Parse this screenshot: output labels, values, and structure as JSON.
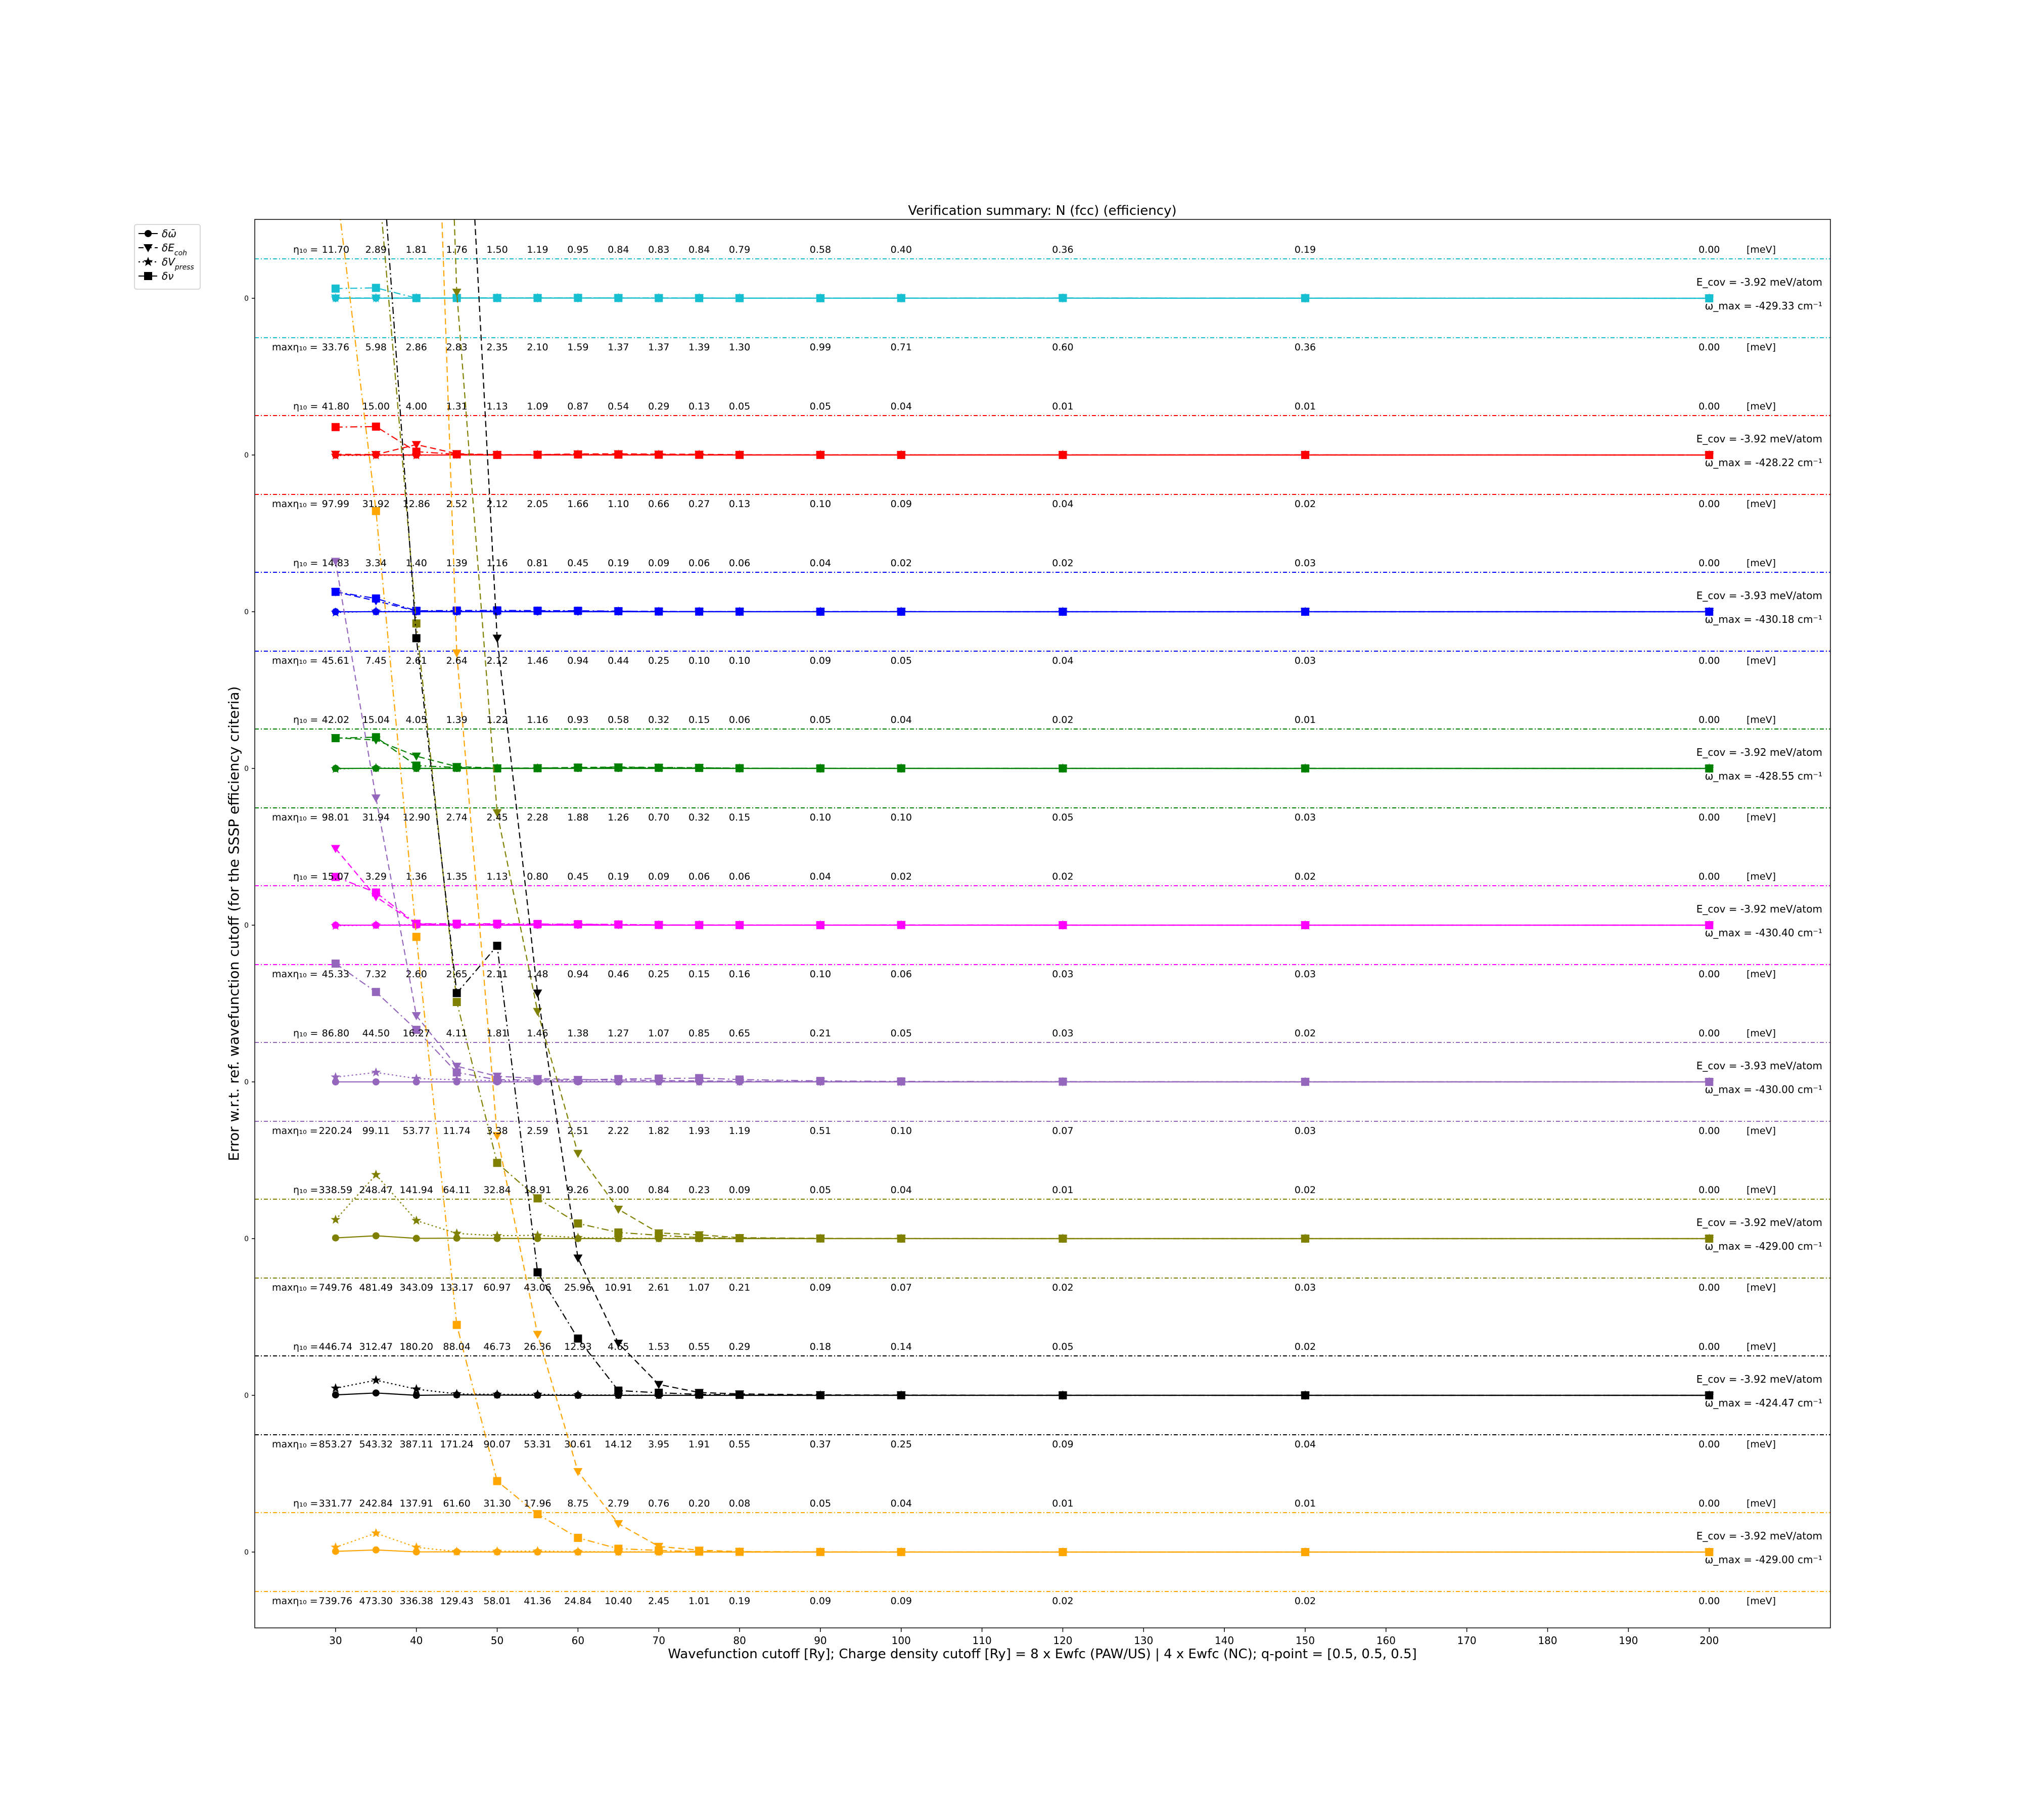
{
  "chart_data": {
    "type": "line",
    "title": "Verification summary: N (fcc) (efficiency)",
    "xlabel": "Wavefunction cutoff [Ry]; Charge density cutoff [Ry] = 8 x Ewfc (PAW/US) | 4 x Ewfc (NC); q-point = [0.5, 0.5, 0.5]",
    "ylabel": "Error w.r.t. ref. wavefunction cutoff (for the SSSP efficiency criteria)",
    "x": [
      30,
      35,
      40,
      45,
      50,
      55,
      60,
      65,
      70,
      75,
      80,
      90,
      100,
      120,
      150,
      200
    ],
    "xticks": [
      30,
      40,
      50,
      60,
      70,
      80,
      90,
      100,
      110,
      120,
      130,
      140,
      150,
      160,
      170,
      180,
      190,
      200
    ],
    "xlim": [
      20,
      215
    ],
    "legend": {
      "placement": "top-left, outside",
      "entries": [
        {
          "label": "δω̄",
          "linestyle": "solid",
          "marker": "circle"
        },
        {
          "label": "δE_coh",
          "linestyle": "dashed",
          "marker": "triangle-down"
        },
        {
          "label": "δV_press",
          "linestyle": "dotted",
          "marker": "star"
        },
        {
          "label": "δν",
          "linestyle": "dashdot",
          "marker": "square"
        }
      ]
    },
    "row_ytick": "0",
    "unit_label": "[meV]",
    "eta_prefix": "η₁₀ =",
    "max_eta_prefix": "maxη₁₀ =",
    "rows": [
      {
        "color": "#17becf",
        "eta": [
          "11.70",
          "2.89",
          "1.81",
          "1.76",
          "1.50",
          "1.19",
          "0.95",
          "0.84",
          "0.83",
          "0.84",
          "0.79",
          "0.58",
          "0.40",
          "0.36",
          "0.19",
          "0.00"
        ],
        "max_eta": [
          "33.76",
          "5.98",
          "2.86",
          "2.83",
          "2.35",
          "2.10",
          "1.59",
          "1.37",
          "1.37",
          "1.39",
          "1.30",
          "0.99",
          "0.71",
          "0.60",
          "0.36",
          "0.00"
        ],
        "ecov": "E_cov = -3.92 meV/atom",
        "omega": "ω_max = -429.33 cm⁻¹",
        "omega_bar": [
          0,
          0.02,
          0.02,
          0.03,
          0.03,
          0.03,
          0.03,
          0.03,
          0.03,
          0.03,
          0.02,
          0.02,
          0.02,
          0.02,
          0.01,
          0
        ],
        "ecoh": [
          0.05,
          0.06,
          0.05,
          0.06,
          0.06,
          0.06,
          0.06,
          0.06,
          0.05,
          0.05,
          0.04,
          0.04,
          0.04,
          0.03,
          0.02,
          0
        ],
        "vpress": [
          0.03,
          0.04,
          0.04,
          0.05,
          0.06,
          0.06,
          0.07,
          0.06,
          0.06,
          0.05,
          0.04,
          0.03,
          0.03,
          0.03,
          0.02,
          0
        ],
        "nu": [
          2.05,
          2.2,
          0.04,
          0.06,
          0.06,
          0.06,
          0.08,
          0.06,
          0.05,
          0.04,
          0.03,
          0.02,
          0.04,
          0.06,
          0.03,
          0
        ]
      },
      {
        "color": "#ff0000",
        "eta": [
          "41.80",
          "15.00",
          "4.00",
          "1.31",
          "1.13",
          "1.09",
          "0.87",
          "0.54",
          "0.29",
          "0.13",
          "0.05",
          "0.05",
          "0.04",
          "0.01",
          "0.01",
          "0.00"
        ],
        "max_eta": [
          "97.99",
          "31.92",
          "12.86",
          "2.52",
          "2.12",
          "2.05",
          "1.66",
          "1.10",
          "0.66",
          "0.27",
          "0.13",
          "0.10",
          "0.09",
          "0.04",
          "0.02",
          "0.00"
        ],
        "ecov": "E_cov = -3.92 meV/atom",
        "omega": "ω_max = -428.22 cm⁻¹",
        "omega_bar": [
          0,
          0.02,
          0,
          0,
          0,
          0,
          0,
          0,
          0,
          0,
          0,
          0,
          0,
          0,
          0,
          0
        ],
        "ecoh": [
          0.15,
          0.1,
          2.2,
          0.28,
          0.05,
          0.07,
          0.22,
          0.25,
          0.18,
          0.15,
          0.05,
          0.03,
          0.02,
          0.01,
          0.01,
          0
        ],
        "vpress": [
          -0.1,
          -0.05,
          -0.05,
          0.03,
          0.02,
          0.04,
          0.1,
          0.1,
          0.07,
          0.06,
          0.02,
          0.02,
          0.01,
          0.01,
          0,
          0
        ],
        "nu": [
          5.9,
          6.0,
          0.7,
          0.15,
          0.02,
          0.05,
          0.12,
          0.08,
          0.06,
          0.04,
          0.02,
          0.02,
          0.01,
          0.01,
          0.01,
          0
        ]
      },
      {
        "color": "#0000ff",
        "eta": [
          "14.83",
          "3.34",
          "1.40",
          "1.39",
          "1.16",
          "0.81",
          "0.45",
          "0.19",
          "0.09",
          "0.06",
          "0.06",
          "0.04",
          "0.02",
          "0.02",
          "0.03",
          "0.00"
        ],
        "max_eta": [
          "45.61",
          "7.45",
          "2.61",
          "2.64",
          "2.12",
          "1.46",
          "0.94",
          "0.44",
          "0.25",
          "0.10",
          "0.10",
          "0.09",
          "0.05",
          "0.04",
          "0.03",
          "0.00"
        ],
        "ecov": "E_cov = -3.93 meV/atom",
        "omega": "ω_max = -430.18 cm⁻¹",
        "omega_bar": [
          0,
          0,
          0,
          0,
          0,
          0,
          0,
          0,
          0,
          0,
          0,
          0,
          0,
          0,
          0,
          0
        ],
        "ecoh": [
          4.2,
          2.3,
          0.12,
          0.05,
          0.1,
          0.1,
          0.1,
          0.1,
          0.06,
          0.03,
          0.02,
          0.01,
          0.01,
          0,
          0,
          0
        ],
        "vpress": [
          -0.15,
          0.08,
          0.05,
          0.03,
          0.05,
          0.08,
          0.08,
          0.06,
          0.03,
          0.02,
          0.02,
          0.01,
          0.01,
          0,
          0,
          0
        ],
        "nu": [
          4.2,
          2.8,
          0.2,
          0.25,
          0.28,
          0.22,
          0.2,
          0.12,
          0.05,
          0.03,
          0.02,
          0.01,
          0.01,
          0,
          0,
          0
        ]
      },
      {
        "color": "#008000",
        "eta": [
          "42.02",
          "15.04",
          "4.05",
          "1.39",
          "1.22",
          "1.16",
          "0.93",
          "0.58",
          "0.32",
          "0.15",
          "0.06",
          "0.05",
          "0.04",
          "0.02",
          "0.01",
          "0.00"
        ],
        "max_eta": [
          "98.01",
          "31.94",
          "12.90",
          "2.74",
          "2.45",
          "2.28",
          "1.88",
          "1.26",
          "0.70",
          "0.32",
          "0.15",
          "0.10",
          "0.10",
          "0.05",
          "0.03",
          "0.00"
        ],
        "ecov": "E_cov = -3.92 meV/atom",
        "omega": "ω_max = -428.55 cm⁻¹",
        "omega_bar": [
          0,
          0.02,
          0,
          0,
          0,
          0,
          0,
          0,
          0,
          0,
          0,
          0,
          0,
          0,
          0,
          0
        ],
        "ecoh": [
          6.5,
          6.0,
          2.6,
          0.4,
          0.05,
          0.1,
          0.2,
          0.3,
          0.2,
          0.15,
          0.03,
          0.02,
          0.02,
          0.01,
          0,
          0
        ],
        "vpress": [
          -0.1,
          0.1,
          0.04,
          0.02,
          0.02,
          0.04,
          0.06,
          0.05,
          0.05,
          0.04,
          0.02,
          0.01,
          0.01,
          0,
          0,
          0
        ],
        "nu": [
          6.4,
          6.6,
          0.6,
          0.2,
          0.02,
          0.05,
          0.18,
          0.2,
          0.15,
          0.12,
          0.05,
          0.02,
          0.02,
          0.01,
          0.01,
          0
        ]
      },
      {
        "color": "#ff00ff",
        "eta": [
          "15.07",
          "3.29",
          "1.36",
          "1.35",
          "1.13",
          "0.80",
          "0.45",
          "0.19",
          "0.09",
          "0.06",
          "0.06",
          "0.04",
          "0.02",
          "0.02",
          "0.02",
          "0.00"
        ],
        "max_eta": [
          "45.33",
          "7.32",
          "2.60",
          "2.65",
          "2.11",
          "1.48",
          "0.94",
          "0.46",
          "0.25",
          "0.15",
          "0.16",
          "0.10",
          "0.06",
          "0.03",
          "0.03",
          "0.00"
        ],
        "ecov": "E_cov = -3.92 meV/atom",
        "omega": "ω_max = -430.40 cm⁻¹",
        "omega_bar": [
          0,
          0,
          0,
          0,
          0,
          0,
          0,
          0,
          0,
          0,
          0,
          0,
          0,
          0,
          0,
          0
        ],
        "ecoh": [
          16.2,
          6.0,
          0.25,
          0.2,
          0.15,
          0.15,
          0.15,
          0.1,
          0.05,
          0.03,
          0.02,
          0.01,
          0.01,
          0,
          0,
          0
        ],
        "vpress": [
          -0.12,
          0,
          0.12,
          0.05,
          0.05,
          0.08,
          0.1,
          0.06,
          0.03,
          0.02,
          0.01,
          0.01,
          0.01,
          0,
          0,
          0
        ],
        "nu": [
          10.2,
          6.9,
          0.3,
          0.3,
          0.3,
          0.25,
          0.2,
          0.15,
          0.05,
          0.03,
          0.02,
          0.01,
          0.04,
          0.01,
          0,
          0
        ]
      },
      {
        "color": "#9467bd",
        "eta": [
          "86.80",
          "44.50",
          "16.27",
          "4.11",
          "1.81",
          "1.46",
          "1.38",
          "1.27",
          "1.07",
          "0.85",
          "0.65",
          "0.21",
          "0.05",
          "0.03",
          "0.02",
          "0.00"
        ],
        "max_eta": [
          "220.24",
          "99.11",
          "53.77",
          "11.74",
          "3.38",
          "2.59",
          "2.51",
          "2.22",
          "1.82",
          "1.93",
          "1.19",
          "0.51",
          "0.10",
          "0.07",
          "0.03",
          "0.00"
        ],
        "ecov": "E_cov = -3.93 meV/atom",
        "omega": "ω_max = -430.00 cm⁻¹",
        "omega_bar": [
          0,
          0,
          0,
          0,
          0,
          0,
          0,
          0,
          0,
          0,
          0,
          0,
          0,
          0,
          0,
          0
        ],
        "ecoh": [
          110,
          60,
          14,
          3.3,
          1.2,
          0.7,
          0.5,
          0.4,
          0.3,
          0.2,
          0.15,
          0.05,
          0.02,
          0.01,
          0,
          0
        ],
        "vpress": [
          1.0,
          2.0,
          0.7,
          0.45,
          0.25,
          0.2,
          0.15,
          0.1,
          0.05,
          0.04,
          0.03,
          0.02,
          0.01,
          0,
          0,
          0
        ],
        "nu": [
          25,
          19,
          11,
          2.0,
          0.45,
          0.4,
          0.4,
          0.6,
          0.7,
          0.8,
          0.5,
          0.2,
          0.1,
          0.05,
          0.02,
          0
        ]
      },
      {
        "color": "#808000",
        "eta": [
          "338.59",
          "248.47",
          "141.94",
          "64.11",
          "32.84",
          "18.91",
          "9.26",
          "3.00",
          "0.84",
          "0.23",
          "0.09",
          "0.05",
          "0.04",
          "0.01",
          "0.02",
          "0.00"
        ],
        "max_eta": [
          "749.76",
          "481.49",
          "343.09",
          "133.17",
          "60.97",
          "43.06",
          "25.96",
          "10.91",
          "2.61",
          "1.07",
          "0.21",
          "0.09",
          "0.07",
          "0.02",
          "0.03",
          "0.00"
        ],
        "ecov": "E_cov = -3.92 meV/atom",
        "omega": "ω_max = -429.00 cm⁻¹",
        "omega_bar": [
          0.15,
          0.6,
          0.05,
          0.1,
          0.03,
          0.02,
          0.01,
          0,
          0,
          0,
          0,
          0,
          0,
          0,
          0,
          0
        ],
        "ecoh": [
          1100,
          800,
          450,
          200,
          90,
          48,
          18,
          6.2,
          1.2,
          0.8,
          0.2,
          0.05,
          0.02,
          0,
          0,
          0
        ],
        "vpress": [
          4.0,
          13.5,
          3.8,
          1.1,
          0.6,
          0.7,
          0.2,
          0.1,
          0.05,
          0.03,
          0.02,
          0.01,
          0,
          0,
          0,
          0
        ],
        "nu": [
          300,
          230,
          130,
          50,
          16,
          8.5,
          3.2,
          1.3,
          0.7,
          0.2,
          0.1,
          0.03,
          0.01,
          0,
          0,
          0
        ]
      },
      {
        "color": "#000000",
        "eta": [
          "446.74",
          "312.47",
          "180.20",
          "88.04",
          "46.73",
          "26.36",
          "12.93",
          "4.65",
          "1.53",
          "0.55",
          "0.29",
          "0.18",
          "0.14",
          "0.05",
          "0.02",
          "0.00"
        ],
        "max_eta": [
          "853.27",
          "543.32",
          "387.11",
          "171.24",
          "90.07",
          "53.31",
          "30.61",
          "14.12",
          "3.95",
          "1.91",
          "0.55",
          "0.37",
          "0.25",
          "0.09",
          "0.04",
          "0.00"
        ],
        "ecov": "E_cov = -3.92 meV/atom",
        "omega": "ω_max = -424.47 cm⁻¹",
        "omega_bar": [
          0.1,
          0.5,
          0,
          0.1,
          0.05,
          0.02,
          0,
          0,
          0,
          0,
          0,
          0,
          0,
          0,
          0,
          0
        ],
        "ecoh": [
          2000,
          1500,
          780,
          320,
          160,
          85,
          29,
          11,
          2.3,
          0.6,
          0.3,
          0.1,
          0.05,
          0.01,
          0,
          0
        ],
        "vpress": [
          1.5,
          3.2,
          1.3,
          0.3,
          0.2,
          0.2,
          0.1,
          0.05,
          0.02,
          0.01,
          0,
          0,
          0,
          0,
          0,
          0
        ],
        "nu": [
          400,
          280,
          160,
          85,
          95,
          26,
          12,
          1.0,
          0.55,
          0.2,
          0.1,
          0.02,
          0.01,
          0,
          0,
          0
        ]
      },
      {
        "color": "#ffa500",
        "eta": [
          "331.77",
          "242.84",
          "137.91",
          "61.60",
          "31.30",
          "17.96",
          "8.75",
          "2.79",
          "0.76",
          "0.20",
          "0.08",
          "0.05",
          "0.04",
          "0.01",
          "0.01",
          "0.00"
        ],
        "max_eta": [
          "739.76",
          "473.30",
          "336.38",
          "129.43",
          "58.01",
          "41.36",
          "24.84",
          "10.40",
          "2.45",
          "1.01",
          "0.19",
          "0.09",
          "0.09",
          "0.02",
          "0.02",
          "0.00"
        ],
        "ecov": "E_cov = -3.92 meV/atom",
        "omega": "ω_max = -429.00 cm⁻¹",
        "omega_bar": [
          0.15,
          0.45,
          0.03,
          0.05,
          0.02,
          0.01,
          0,
          0,
          0,
          0,
          0,
          0,
          0,
          0,
          0,
          0
        ],
        "ecoh": [
          1050,
          780,
          440,
          190,
          88,
          46,
          17,
          6,
          1.2,
          0.4,
          0.1,
          0.03,
          0.01,
          0,
          0,
          0
        ],
        "vpress": [
          1.0,
          4.0,
          1.0,
          0.1,
          0.15,
          0.2,
          0.1,
          0.05,
          0.02,
          0.01,
          0,
          0,
          0,
          0,
          0,
          0
        ],
        "nu": [
          290,
          220,
          130,
          48,
          15,
          8.0,
          3.0,
          0.7,
          0.35,
          0.1,
          0.05,
          0.02,
          0.01,
          0,
          0,
          0
        ]
      }
    ]
  }
}
